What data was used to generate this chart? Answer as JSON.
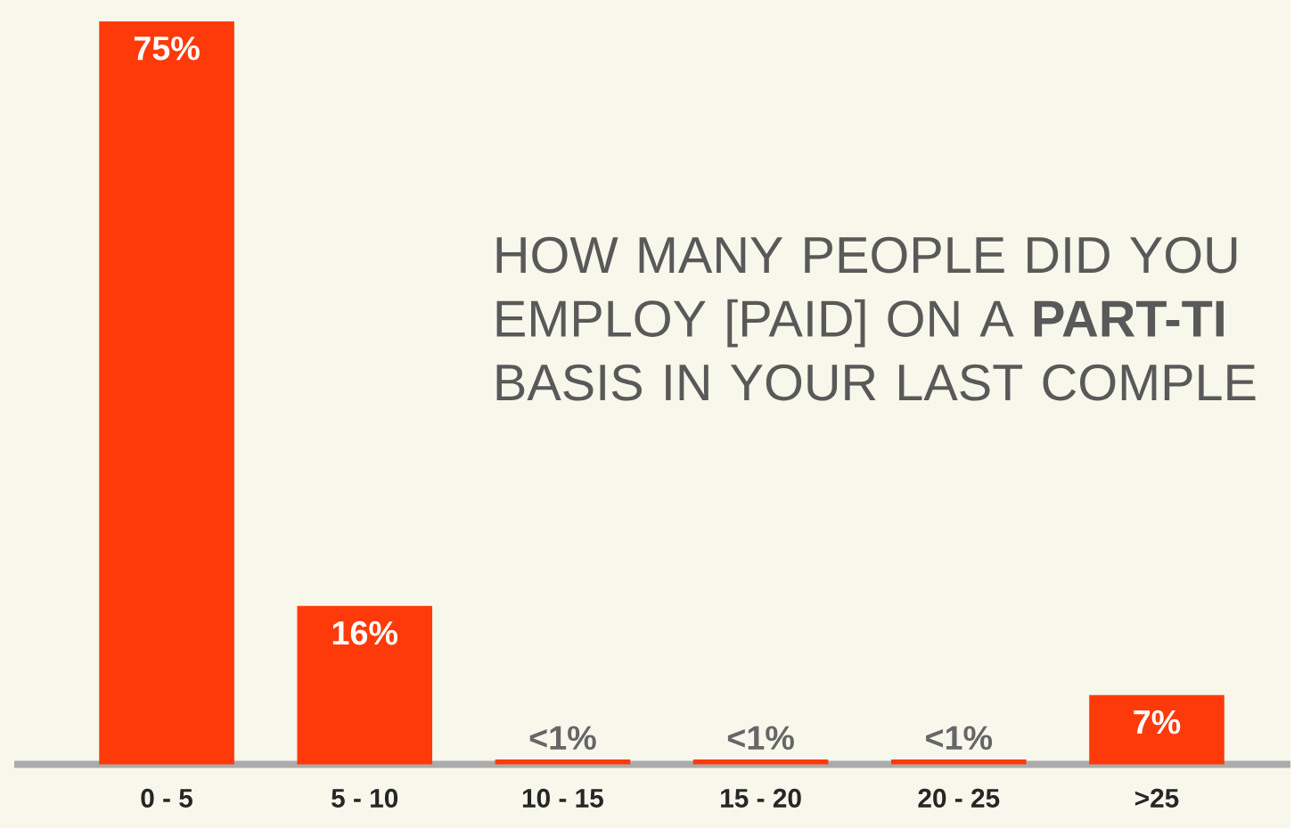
{
  "chart_data": {
    "type": "bar",
    "title": "HOW MANY PEOPLE DID YOU EMPLOY [PAID] ON A **PART-TI** BASIS IN YOUR LAST COMPLE",
    "categories": [
      "0 - 5",
      "5 - 10",
      "10 - 15",
      "15 - 20",
      "20 - 25",
      ">25"
    ],
    "values": [
      75,
      16,
      0.5,
      0.5,
      0.5,
      7
    ],
    "value_labels": [
      "75%",
      "16%",
      "<1%",
      "<1%",
      "<1%",
      "7%"
    ],
    "color": "#ff3a0a"
  }
}
